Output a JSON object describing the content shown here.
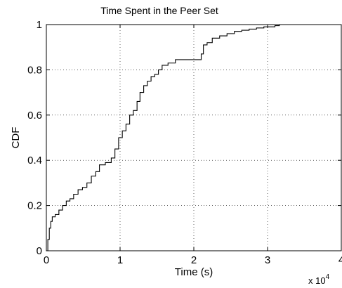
{
  "chart_data": {
    "type": "line",
    "title": "Time Spent in the Peer Set",
    "xlabel": "Time (s)",
    "ylabel": "CDF",
    "x_multiplier_label": "x 10",
    "x_multiplier_exponent": "4",
    "xlim": [
      0,
      40000
    ],
    "ylim": [
      0,
      1
    ],
    "x_ticks": [
      0,
      10000,
      20000,
      30000,
      40000
    ],
    "x_tick_labels": [
      "0",
      "1",
      "2",
      "3",
      "4"
    ],
    "y_ticks": [
      0,
      0.2,
      0.4,
      0.6,
      0.8,
      1
    ],
    "y_tick_labels": [
      "0",
      "0.2",
      "0.4",
      "0.6",
      "0.8",
      "1"
    ],
    "grid": true,
    "grid_style": "dotted",
    "line_color": "#000000",
    "series": [
      {
        "step": true,
        "x": [
          0,
          200,
          400,
          600,
          800,
          1200,
          1700,
          2200,
          2700,
          3200,
          3700,
          4300,
          4900,
          5500,
          6100,
          6700,
          7200,
          8000,
          8800,
          9300,
          9800,
          10300,
          10800,
          11300,
          11800,
          12300,
          12700,
          13200,
          13700,
          14200,
          14700,
          15200,
          15700,
          16500,
          17500,
          18500,
          19500,
          20500,
          21000,
          21300,
          21800,
          22500,
          23500,
          24500,
          25500,
          26500,
          27500,
          28500,
          29500,
          31000,
          31600
        ],
        "y": [
          0,
          0.05,
          0.1,
          0.13,
          0.15,
          0.16,
          0.18,
          0.2,
          0.22,
          0.23,
          0.25,
          0.27,
          0.28,
          0.3,
          0.33,
          0.35,
          0.38,
          0.39,
          0.41,
          0.45,
          0.5,
          0.53,
          0.56,
          0.6,
          0.62,
          0.66,
          0.7,
          0.73,
          0.75,
          0.77,
          0.78,
          0.8,
          0.82,
          0.83,
          0.845,
          0.845,
          0.845,
          0.845,
          0.87,
          0.91,
          0.92,
          0.94,
          0.95,
          0.96,
          0.97,
          0.975,
          0.98,
          0.985,
          0.99,
          0.995,
          1.0
        ]
      }
    ]
  }
}
